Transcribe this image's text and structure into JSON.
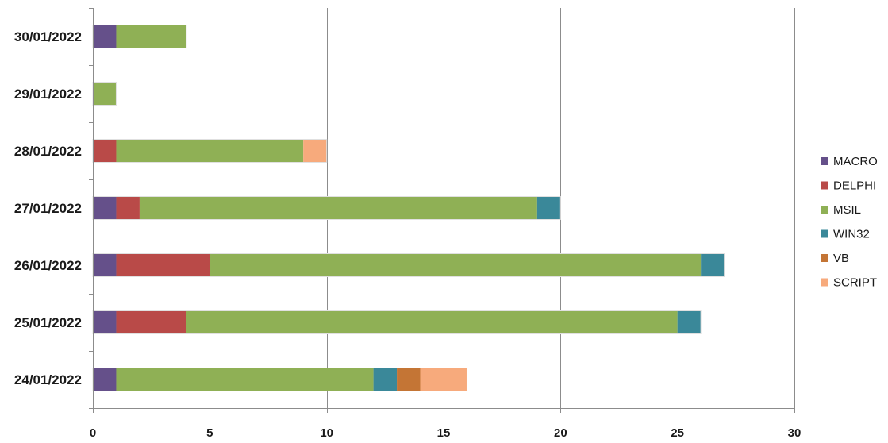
{
  "chart_data": {
    "type": "bar",
    "orientation": "horizontal",
    "stacked": true,
    "categories": [
      "30/01/2022",
      "29/01/2022",
      "28/01/2022",
      "27/01/2022",
      "26/01/2022",
      "25/01/2022",
      "24/01/2022"
    ],
    "series": [
      {
        "name": "MACRO",
        "color": "#65508a",
        "values": [
          1,
          0,
          0,
          1,
          1,
          1,
          1
        ]
      },
      {
        "name": "DELPHI",
        "color": "#b94a48",
        "values": [
          0,
          0,
          1,
          1,
          4,
          3,
          0
        ]
      },
      {
        "name": "MSIL",
        "color": "#8fb055",
        "values": [
          3,
          1,
          8,
          17,
          21,
          21,
          11
        ]
      },
      {
        "name": "WIN32",
        "color": "#3a8899",
        "values": [
          0,
          0,
          0,
          1,
          1,
          1,
          1
        ]
      },
      {
        "name": "VB",
        "color": "#c47535",
        "values": [
          0,
          0,
          0,
          0,
          0,
          0,
          1
        ]
      },
      {
        "name": "SCRIPT",
        "color": "#f7aa7c",
        "values": [
          0,
          0,
          1,
          0,
          0,
          0,
          2
        ]
      }
    ],
    "xlim": [
      0,
      30
    ],
    "xticks": [
      0,
      5,
      10,
      15,
      20,
      25,
      30
    ],
    "grid": true,
    "legend_position": "right",
    "title": "",
    "xlabel": "",
    "ylabel": ""
  }
}
